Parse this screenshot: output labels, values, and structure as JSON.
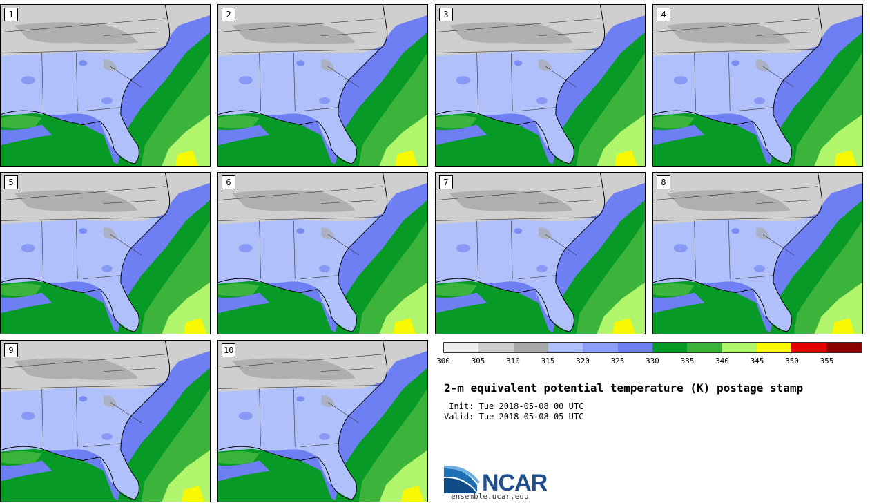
{
  "panels": [
    {
      "label": "1"
    },
    {
      "label": "2"
    },
    {
      "label": "3"
    },
    {
      "label": "4"
    },
    {
      "label": "5"
    },
    {
      "label": "6"
    },
    {
      "label": "7"
    },
    {
      "label": "8"
    },
    {
      "label": "9"
    },
    {
      "label": "10"
    }
  ],
  "colorbar": {
    "ticks": [
      "300",
      "305",
      "310",
      "315",
      "320",
      "325",
      "330",
      "335",
      "340",
      "345",
      "350",
      "355"
    ],
    "colors": [
      "#eeeeee",
      "#cfcfcf",
      "#a9a9a9",
      "#b0c0fb",
      "#8c9ef7",
      "#6d7ff2",
      "#079a26",
      "#3cb43c",
      "#b1f56d",
      "#f8f800",
      "#e20000",
      "#8b0000"
    ]
  },
  "title": "2-m equivalent potential temperature (K) postage stamp",
  "init": " Init: Tue 2018-05-08 00 UTC",
  "valid": "Valid: Tue 2018-05-08 05 UTC",
  "logo": {
    "name": "NCAR",
    "url": "ensemble.ucar.edu"
  },
  "map_colors": {
    "ocean": "#6d7ff2",
    "land": "#b0c0fb",
    "north_gray": "#cfcfcf",
    "dark_gray": "#a9a9a9",
    "green_dark": "#079a26",
    "green": "#3cb43c",
    "yellow_green": "#b1f56d",
    "yellow": "#f8f800"
  }
}
